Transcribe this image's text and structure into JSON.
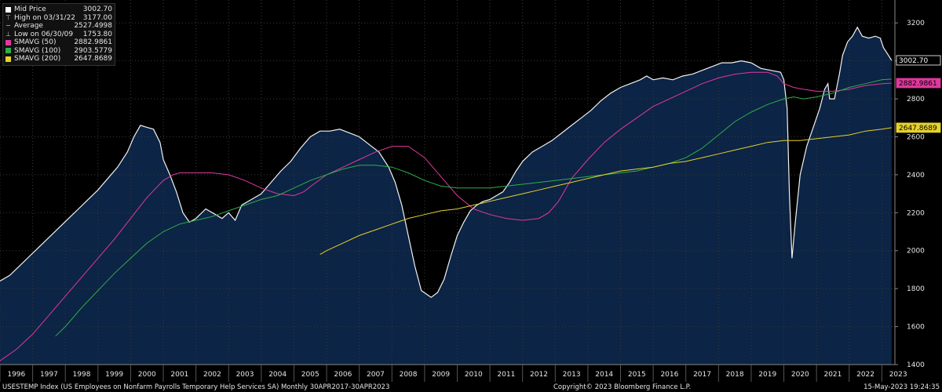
{
  "legend": [
    {
      "label": "Mid Price",
      "value": "3002.70",
      "glyph": "square",
      "color": "#ffffff"
    },
    {
      "label": "High on 03/31/22",
      "value": "3177.00",
      "glyph": "high-marker",
      "color": "#cccccc"
    },
    {
      "label": "Average",
      "value": "2527.4998",
      "glyph": "average-marker",
      "color": "#cccccc"
    },
    {
      "label": "Low on 06/30/09",
      "value": "1753.80",
      "glyph": "low-marker",
      "color": "#cccccc"
    },
    {
      "label": "SMAVG (50)",
      "value": "2882.9861",
      "glyph": "square",
      "color": "#e0389e"
    },
    {
      "label": "SMAVG (100)",
      "value": "2903.5779",
      "glyph": "square",
      "color": "#2fae4a"
    },
    {
      "label": "SMAVG (200)",
      "value": "2647.8689",
      "glyph": "square",
      "color": "#e6d22a"
    }
  ],
  "footer": {
    "left": "USESTEMP Index (US Employees on Nonfarm Payrolls Temporary Help Services SA)  Monthly 30APR2017-30APR2023",
    "center": "Copyright© 2023 Bloomberg Finance L.P.",
    "right": "15-May-2023 19:24:35"
  },
  "chart_data": {
    "type": "area",
    "xlim": [
      1996.0,
      2023.4
    ],
    "ylim": [
      1400,
      3300
    ],
    "y_ticks": [
      1400,
      1600,
      1800,
      2000,
      2200,
      2400,
      2600,
      2800,
      3000,
      3200
    ],
    "x_tick_labels": [
      "1996",
      "1997",
      "1998",
      "1999",
      "2000",
      "2001",
      "2002",
      "2003",
      "2004",
      "2005",
      "2006",
      "2007",
      "2008",
      "2009",
      "2010",
      "2011",
      "2012",
      "2013",
      "2014",
      "2015",
      "2016",
      "2017",
      "2018",
      "2019",
      "2020",
      "2021",
      "2022",
      "2023"
    ],
    "grid": true,
    "legend_position": "top-left",
    "colors": {
      "area": "#0c2445",
      "price": "#f2f2f2",
      "sma50": "#e0389e",
      "sma100": "#2fae4a",
      "sma200": "#e6d22a",
      "grid": "#3a3a3a",
      "axis": "#888888"
    },
    "last_value_labels": [
      {
        "text": "3002.70",
        "value": 3002.7,
        "bg": "#000000",
        "fg": "#ffffff",
        "border": "#ffffff"
      },
      {
        "text": "2882.9861",
        "value": 2882.9861,
        "bg": "#e0389e",
        "fg": "#000000",
        "border": "#e0389e"
      },
      {
        "text": "2647.8689",
        "value": 2647.8689,
        "bg": "#e6d22a",
        "fg": "#000000",
        "border": "#e6d22a"
      }
    ],
    "series": [
      {
        "name": "Mid Price",
        "key": "price",
        "points": [
          [
            1996.0,
            1840
          ],
          [
            1996.3,
            1870
          ],
          [
            1996.6,
            1920
          ],
          [
            1996.9,
            1970
          ],
          [
            1997.2,
            2020
          ],
          [
            1997.5,
            2070
          ],
          [
            1997.8,
            2120
          ],
          [
            1998.1,
            2170
          ],
          [
            1998.4,
            2220
          ],
          [
            1998.7,
            2270
          ],
          [
            1999.0,
            2320
          ],
          [
            1999.3,
            2380
          ],
          [
            1999.6,
            2440
          ],
          [
            1999.9,
            2520
          ],
          [
            2000.1,
            2600
          ],
          [
            2000.3,
            2660
          ],
          [
            2000.5,
            2650
          ],
          [
            2000.7,
            2640
          ],
          [
            2000.9,
            2570
          ],
          [
            2001.0,
            2480
          ],
          [
            2001.2,
            2400
          ],
          [
            2001.4,
            2310
          ],
          [
            2001.6,
            2200
          ],
          [
            2001.8,
            2150
          ],
          [
            2002.0,
            2170
          ],
          [
            2002.3,
            2220
          ],
          [
            2002.6,
            2190
          ],
          [
            2002.8,
            2170
          ],
          [
            2003.0,
            2200
          ],
          [
            2003.2,
            2160
          ],
          [
            2003.4,
            2240
          ],
          [
            2003.7,
            2270
          ],
          [
            2004.0,
            2300
          ],
          [
            2004.3,
            2360
          ],
          [
            2004.6,
            2420
          ],
          [
            2004.9,
            2470
          ],
          [
            2005.2,
            2540
          ],
          [
            2005.5,
            2600
          ],
          [
            2005.8,
            2630
          ],
          [
            2006.1,
            2630
          ],
          [
            2006.4,
            2640
          ],
          [
            2006.7,
            2620
          ],
          [
            2007.0,
            2600
          ],
          [
            2007.3,
            2560
          ],
          [
            2007.6,
            2520
          ],
          [
            2007.9,
            2440
          ],
          [
            2008.1,
            2360
          ],
          [
            2008.3,
            2240
          ],
          [
            2008.5,
            2080
          ],
          [
            2008.7,
            1920
          ],
          [
            2008.9,
            1790
          ],
          [
            2009.2,
            1753.8
          ],
          [
            2009.4,
            1780
          ],
          [
            2009.6,
            1850
          ],
          [
            2009.8,
            1970
          ],
          [
            2010.0,
            2080
          ],
          [
            2010.2,
            2150
          ],
          [
            2010.4,
            2210
          ],
          [
            2010.6,
            2240
          ],
          [
            2010.8,
            2260
          ],
          [
            2011.0,
            2270
          ],
          [
            2011.2,
            2290
          ],
          [
            2011.4,
            2310
          ],
          [
            2011.6,
            2360
          ],
          [
            2011.8,
            2420
          ],
          [
            2012.0,
            2470
          ],
          [
            2012.3,
            2520
          ],
          [
            2012.6,
            2550
          ],
          [
            2012.9,
            2580
          ],
          [
            2013.2,
            2620
          ],
          [
            2013.5,
            2660
          ],
          [
            2013.8,
            2700
          ],
          [
            2014.1,
            2740
          ],
          [
            2014.4,
            2790
          ],
          [
            2014.7,
            2830
          ],
          [
            2015.0,
            2860
          ],
          [
            2015.3,
            2880
          ],
          [
            2015.6,
            2900
          ],
          [
            2015.8,
            2920
          ],
          [
            2016.0,
            2900
          ],
          [
            2016.3,
            2910
          ],
          [
            2016.6,
            2900
          ],
          [
            2016.9,
            2920
          ],
          [
            2017.2,
            2930
          ],
          [
            2017.5,
            2950
          ],
          [
            2017.8,
            2970
          ],
          [
            2018.1,
            2990
          ],
          [
            2018.4,
            2990
          ],
          [
            2018.7,
            3000
          ],
          [
            2019.0,
            2990
          ],
          [
            2019.3,
            2960
          ],
          [
            2019.6,
            2950
          ],
          [
            2019.9,
            2940
          ],
          [
            2020.0,
            2900
          ],
          [
            2020.1,
            2750
          ],
          [
            2020.17,
            2300
          ],
          [
            2020.25,
            1960
          ],
          [
            2020.35,
            2150
          ],
          [
            2020.5,
            2400
          ],
          [
            2020.7,
            2550
          ],
          [
            2020.9,
            2650
          ],
          [
            2021.1,
            2750
          ],
          [
            2021.25,
            2850
          ],
          [
            2021.35,
            2880
          ],
          [
            2021.4,
            2800
          ],
          [
            2021.55,
            2800
          ],
          [
            2021.7,
            2930
          ],
          [
            2021.8,
            3030
          ],
          [
            2021.95,
            3100
          ],
          [
            2022.1,
            3130
          ],
          [
            2022.25,
            3177
          ],
          [
            2022.4,
            3130
          ],
          [
            2022.6,
            3120
          ],
          [
            2022.8,
            3130
          ],
          [
            2022.95,
            3120
          ],
          [
            2023.05,
            3070
          ],
          [
            2023.2,
            3030
          ],
          [
            2023.3,
            3002.7
          ]
        ]
      },
      {
        "name": "SMAVG (50)",
        "key": "sma50",
        "points": [
          [
            1996.0,
            1420
          ],
          [
            1996.5,
            1480
          ],
          [
            1997.0,
            1560
          ],
          [
            1997.5,
            1660
          ],
          [
            1998.0,
            1760
          ],
          [
            1998.5,
            1860
          ],
          [
            1999.0,
            1960
          ],
          [
            1999.5,
            2060
          ],
          [
            2000.0,
            2170
          ],
          [
            2000.5,
            2280
          ],
          [
            2001.0,
            2370
          ],
          [
            2001.3,
            2400
          ],
          [
            2001.5,
            2410
          ],
          [
            2002.0,
            2410
          ],
          [
            2002.5,
            2410
          ],
          [
            2003.0,
            2400
          ],
          [
            2003.5,
            2370
          ],
          [
            2004.0,
            2330
          ],
          [
            2004.5,
            2300
          ],
          [
            2005.0,
            2290
          ],
          [
            2005.3,
            2310
          ],
          [
            2005.6,
            2350
          ],
          [
            2006.0,
            2400
          ],
          [
            2006.5,
            2440
          ],
          [
            2007.0,
            2480
          ],
          [
            2007.5,
            2520
          ],
          [
            2008.0,
            2550
          ],
          [
            2008.5,
            2550
          ],
          [
            2009.0,
            2490
          ],
          [
            2009.5,
            2390
          ],
          [
            2010.0,
            2290
          ],
          [
            2010.5,
            2220
          ],
          [
            2011.0,
            2190
          ],
          [
            2011.5,
            2170
          ],
          [
            2012.0,
            2160
          ],
          [
            2012.5,
            2170
          ],
          [
            2012.8,
            2200
          ],
          [
            2013.1,
            2260
          ],
          [
            2013.5,
            2380
          ],
          [
            2014.0,
            2480
          ],
          [
            2014.5,
            2570
          ],
          [
            2015.0,
            2640
          ],
          [
            2015.5,
            2700
          ],
          [
            2016.0,
            2760
          ],
          [
            2016.5,
            2800
          ],
          [
            2017.0,
            2840
          ],
          [
            2017.5,
            2880
          ],
          [
            2018.0,
            2910
          ],
          [
            2018.5,
            2930
          ],
          [
            2019.0,
            2940
          ],
          [
            2019.5,
            2940
          ],
          [
            2019.8,
            2920
          ],
          [
            2020.0,
            2880
          ],
          [
            2020.3,
            2860
          ],
          [
            2020.6,
            2850
          ],
          [
            2021.0,
            2840
          ],
          [
            2021.5,
            2840
          ],
          [
            2022.0,
            2850
          ],
          [
            2022.5,
            2870
          ],
          [
            2023.0,
            2880
          ],
          [
            2023.3,
            2883
          ]
        ]
      },
      {
        "name": "SMAVG (100)",
        "key": "sma100",
        "points": [
          [
            1997.7,
            1550
          ],
          [
            1998.0,
            1600
          ],
          [
            1998.5,
            1700
          ],
          [
            1999.0,
            1790
          ],
          [
            1999.5,
            1880
          ],
          [
            2000.0,
            1960
          ],
          [
            2000.5,
            2040
          ],
          [
            2001.0,
            2100
          ],
          [
            2001.5,
            2140
          ],
          [
            2002.0,
            2160
          ],
          [
            2002.5,
            2180
          ],
          [
            2003.0,
            2210
          ],
          [
            2003.5,
            2240
          ],
          [
            2004.0,
            2270
          ],
          [
            2004.5,
            2290
          ],
          [
            2005.0,
            2330
          ],
          [
            2005.5,
            2370
          ],
          [
            2006.0,
            2400
          ],
          [
            2006.5,
            2430
          ],
          [
            2007.0,
            2450
          ],
          [
            2007.5,
            2450
          ],
          [
            2008.0,
            2440
          ],
          [
            2008.5,
            2410
          ],
          [
            2009.0,
            2370
          ],
          [
            2009.5,
            2340
          ],
          [
            2010.0,
            2330
          ],
          [
            2010.5,
            2330
          ],
          [
            2011.0,
            2330
          ],
          [
            2011.5,
            2340
          ],
          [
            2012.0,
            2350
          ],
          [
            2012.5,
            2360
          ],
          [
            2013.0,
            2370
          ],
          [
            2013.5,
            2380
          ],
          [
            2014.0,
            2390
          ],
          [
            2014.5,
            2400
          ],
          [
            2015.0,
            2410
          ],
          [
            2015.5,
            2420
          ],
          [
            2016.0,
            2440
          ],
          [
            2016.5,
            2460
          ],
          [
            2017.0,
            2490
          ],
          [
            2017.5,
            2540
          ],
          [
            2018.0,
            2610
          ],
          [
            2018.5,
            2680
          ],
          [
            2019.0,
            2730
          ],
          [
            2019.5,
            2770
          ],
          [
            2020.0,
            2800
          ],
          [
            2020.3,
            2810
          ],
          [
            2020.6,
            2800
          ],
          [
            2021.0,
            2810
          ],
          [
            2021.5,
            2830
          ],
          [
            2022.0,
            2860
          ],
          [
            2022.5,
            2880
          ],
          [
            2023.0,
            2900
          ],
          [
            2023.3,
            2904
          ]
        ]
      },
      {
        "name": "SMAVG (200)",
        "key": "sma200",
        "points": [
          [
            2005.8,
            1980
          ],
          [
            2006.0,
            2000
          ],
          [
            2006.5,
            2040
          ],
          [
            2007.0,
            2080
          ],
          [
            2007.5,
            2110
          ],
          [
            2008.0,
            2140
          ],
          [
            2008.5,
            2170
          ],
          [
            2009.0,
            2190
          ],
          [
            2009.5,
            2210
          ],
          [
            2010.0,
            2220
          ],
          [
            2010.5,
            2240
          ],
          [
            2011.0,
            2260
          ],
          [
            2011.5,
            2280
          ],
          [
            2012.0,
            2300
          ],
          [
            2012.5,
            2320
          ],
          [
            2013.0,
            2340
          ],
          [
            2013.5,
            2360
          ],
          [
            2014.0,
            2380
          ],
          [
            2014.5,
            2400
          ],
          [
            2015.0,
            2420
          ],
          [
            2015.5,
            2430
          ],
          [
            2016.0,
            2440
          ],
          [
            2016.5,
            2460
          ],
          [
            2017.0,
            2470
          ],
          [
            2017.5,
            2490
          ],
          [
            2018.0,
            2510
          ],
          [
            2018.5,
            2530
          ],
          [
            2019.0,
            2550
          ],
          [
            2019.5,
            2570
          ],
          [
            2020.0,
            2580
          ],
          [
            2020.5,
            2580
          ],
          [
            2021.0,
            2590
          ],
          [
            2021.5,
            2600
          ],
          [
            2022.0,
            2610
          ],
          [
            2022.5,
            2630
          ],
          [
            2023.0,
            2640
          ],
          [
            2023.3,
            2648
          ]
        ]
      }
    ]
  }
}
